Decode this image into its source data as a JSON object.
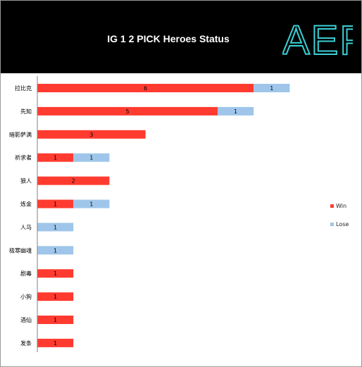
{
  "header": {
    "title": "IG 1 2 PICK Heroes Status",
    "logo_text": "AEP"
  },
  "colors": {
    "win": "#ff3b30",
    "lose": "#9fc6ea",
    "logo": "#3ad0d6",
    "header_bg": "#000000"
  },
  "legend": {
    "win_label": "Win",
    "lose_label": "Lose",
    "placement": "right"
  },
  "chart_data": {
    "type": "bar",
    "orientation": "horizontal",
    "stacked": true,
    "title": "IG 1 2 PICK Heroes Status",
    "categories": [
      "拉比克",
      "先知",
      "暗影萨满",
      "祈求者",
      "狼人",
      "炼金",
      "人马",
      "极寒幽魂",
      "剧毒",
      "小狗",
      "酒仙",
      "发条"
    ],
    "series": [
      {
        "name": "Win",
        "values": [
          6,
          5,
          3,
          1,
          2,
          1,
          0,
          0,
          1,
          1,
          1,
          1
        ]
      },
      {
        "name": "Lose",
        "values": [
          1,
          1,
          0,
          1,
          0,
          1,
          1,
          1,
          0,
          0,
          0,
          0
        ]
      }
    ],
    "xlim": [
      0,
      8
    ],
    "grid": false,
    "legend": "right"
  }
}
